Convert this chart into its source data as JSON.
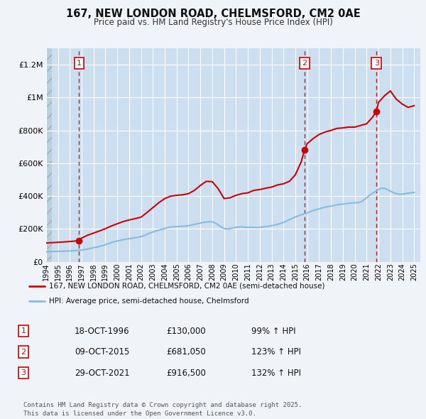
{
  "title": "167, NEW LONDON ROAD, CHELMSFORD, CM2 0AE",
  "subtitle": "Price paid vs. HM Land Registry's House Price Index (HPI)",
  "bg_color": "#f0f4f8",
  "plot_bg_color": "#ccdff0",
  "grid_color": "#ffffff",
  "hatch_color": "#b8cfe0",
  "red_line_color": "#cc0000",
  "blue_line_color": "#88bbdd",
  "marker_color": "#cc0000",
  "vline_color": "#cc0000",
  "ylim": [
    0,
    1300000
  ],
  "yticks": [
    0,
    200000,
    400000,
    600000,
    800000,
    1000000,
    1200000
  ],
  "ytick_labels": [
    "£0",
    "£200K",
    "£400K",
    "£600K",
    "£800K",
    "£1M",
    "£1.2M"
  ],
  "xmin": 1994.0,
  "xmax": 2025.5,
  "legend_label_red": "167, NEW LONDON ROAD, CHELMSFORD, CM2 0AE (semi-detached house)",
  "legend_label_blue": "HPI: Average price, semi-detached house, Chelmsford",
  "sale1_label": "1",
  "sale1_date": "18-OCT-1996",
  "sale1_price": "£130,000",
  "sale1_hpi": "99% ↑ HPI",
  "sale1_x": 1996.79,
  "sale1_y": 130000,
  "sale2_label": "2",
  "sale2_date": "09-OCT-2015",
  "sale2_price": "£681,050",
  "sale2_hpi": "123% ↑ HPI",
  "sale2_x": 2015.77,
  "sale2_y": 681050,
  "sale3_label": "3",
  "sale3_date": "29-OCT-2021",
  "sale3_price": "£916,500",
  "sale3_hpi": "132% ↑ HPI",
  "sale3_x": 2021.83,
  "sale3_y": 916500,
  "footer": "Contains HM Land Registry data © Crown copyright and database right 2025.\nThis data is licensed under the Open Government Licence v3.0.",
  "hpi_x": [
    1994.0,
    1994.25,
    1994.5,
    1994.75,
    1995.0,
    1995.25,
    1995.5,
    1995.75,
    1996.0,
    1996.25,
    1996.5,
    1996.75,
    1997.0,
    1997.25,
    1997.5,
    1997.75,
    1998.0,
    1998.25,
    1998.5,
    1998.75,
    1999.0,
    1999.25,
    1999.5,
    1999.75,
    2000.0,
    2000.25,
    2000.5,
    2000.75,
    2001.0,
    2001.25,
    2001.5,
    2001.75,
    2002.0,
    2002.25,
    2002.5,
    2002.75,
    2003.0,
    2003.25,
    2003.5,
    2003.75,
    2004.0,
    2004.25,
    2004.5,
    2004.75,
    2005.0,
    2005.25,
    2005.5,
    2005.75,
    2006.0,
    2006.25,
    2006.5,
    2006.75,
    2007.0,
    2007.25,
    2007.5,
    2007.75,
    2008.0,
    2008.25,
    2008.5,
    2008.75,
    2009.0,
    2009.25,
    2009.5,
    2009.75,
    2010.0,
    2010.25,
    2010.5,
    2010.75,
    2011.0,
    2011.25,
    2011.5,
    2011.75,
    2012.0,
    2012.25,
    2012.5,
    2012.75,
    2013.0,
    2013.25,
    2013.5,
    2013.75,
    2014.0,
    2014.25,
    2014.5,
    2014.75,
    2015.0,
    2015.25,
    2015.5,
    2015.75,
    2016.0,
    2016.25,
    2016.5,
    2016.75,
    2017.0,
    2017.25,
    2017.5,
    2017.75,
    2018.0,
    2018.25,
    2018.5,
    2018.75,
    2019.0,
    2019.25,
    2019.5,
    2019.75,
    2020.0,
    2020.25,
    2020.5,
    2020.75,
    2021.0,
    2021.25,
    2021.5,
    2021.75,
    2022.0,
    2022.25,
    2022.5,
    2022.75,
    2023.0,
    2023.25,
    2023.5,
    2023.75,
    2024.0,
    2024.25,
    2024.5,
    2024.75,
    2025.0
  ],
  "hpi_y": [
    62000,
    62500,
    63000,
    63500,
    64000,
    64500,
    65000,
    65500,
    66500,
    67500,
    68500,
    70000,
    72000,
    75000,
    78000,
    82000,
    86000,
    90000,
    94000,
    99000,
    105000,
    111000,
    117000,
    122000,
    127000,
    131000,
    135000,
    138000,
    141000,
    144000,
    147000,
    150000,
    154000,
    160000,
    167000,
    175000,
    182000,
    188000,
    193000,
    198000,
    203000,
    208000,
    212000,
    214000,
    215000,
    216000,
    217000,
    218000,
    220000,
    224000,
    228000,
    232000,
    236000,
    240000,
    243000,
    244000,
    243000,
    237000,
    225000,
    212000,
    203000,
    200000,
    202000,
    206000,
    210000,
    213000,
    213000,
    211000,
    210000,
    210000,
    210000,
    209000,
    210000,
    212000,
    215000,
    217000,
    220000,
    224000,
    228000,
    234000,
    240000,
    248000,
    257000,
    265000,
    273000,
    280000,
    287000,
    292000,
    298000,
    305000,
    313000,
    318000,
    323000,
    328000,
    333000,
    336000,
    339000,
    343000,
    347000,
    350000,
    352000,
    354000,
    356000,
    358000,
    360000,
    360000,
    365000,
    375000,
    390000,
    405000,
    418000,
    428000,
    440000,
    448000,
    448000,
    440000,
    430000,
    422000,
    415000,
    412000,
    412000,
    415000,
    418000,
    420000,
    422000
  ],
  "red_x": [
    1994.0,
    1994.5,
    1995.0,
    1995.5,
    1996.0,
    1996.5,
    1996.79,
    1997.0,
    1997.5,
    1998.0,
    1998.5,
    1999.0,
    1999.5,
    2000.0,
    2000.5,
    2001.0,
    2001.5,
    2002.0,
    2002.5,
    2003.0,
    2003.5,
    2004.0,
    2004.5,
    2005.0,
    2005.5,
    2006.0,
    2006.5,
    2007.0,
    2007.5,
    2008.0,
    2008.5,
    2009.0,
    2009.5,
    2010.0,
    2010.5,
    2011.0,
    2011.5,
    2012.0,
    2012.5,
    2013.0,
    2013.5,
    2014.0,
    2014.5,
    2015.0,
    2015.5,
    2015.77,
    2016.0,
    2016.5,
    2017.0,
    2017.5,
    2018.0,
    2018.5,
    2019.0,
    2019.5,
    2020.0,
    2020.5,
    2021.0,
    2021.5,
    2021.83,
    2022.0,
    2022.5,
    2023.0,
    2023.5,
    2024.0,
    2024.5,
    2025.0
  ],
  "red_y": [
    115000,
    117000,
    119000,
    121000,
    124000,
    127000,
    130000,
    145000,
    162000,
    175000,
    188000,
    202000,
    218000,
    232000,
    245000,
    255000,
    263000,
    272000,
    300000,
    330000,
    360000,
    385000,
    400000,
    405000,
    408000,
    415000,
    435000,
    465000,
    490000,
    488000,
    445000,
    385000,
    390000,
    405000,
    415000,
    420000,
    435000,
    440000,
    448000,
    455000,
    468000,
    475000,
    490000,
    530000,
    610000,
    681050,
    720000,
    750000,
    775000,
    790000,
    800000,
    812000,
    815000,
    820000,
    820000,
    830000,
    840000,
    880000,
    916500,
    970000,
    1010000,
    1040000,
    990000,
    960000,
    940000,
    950000
  ]
}
